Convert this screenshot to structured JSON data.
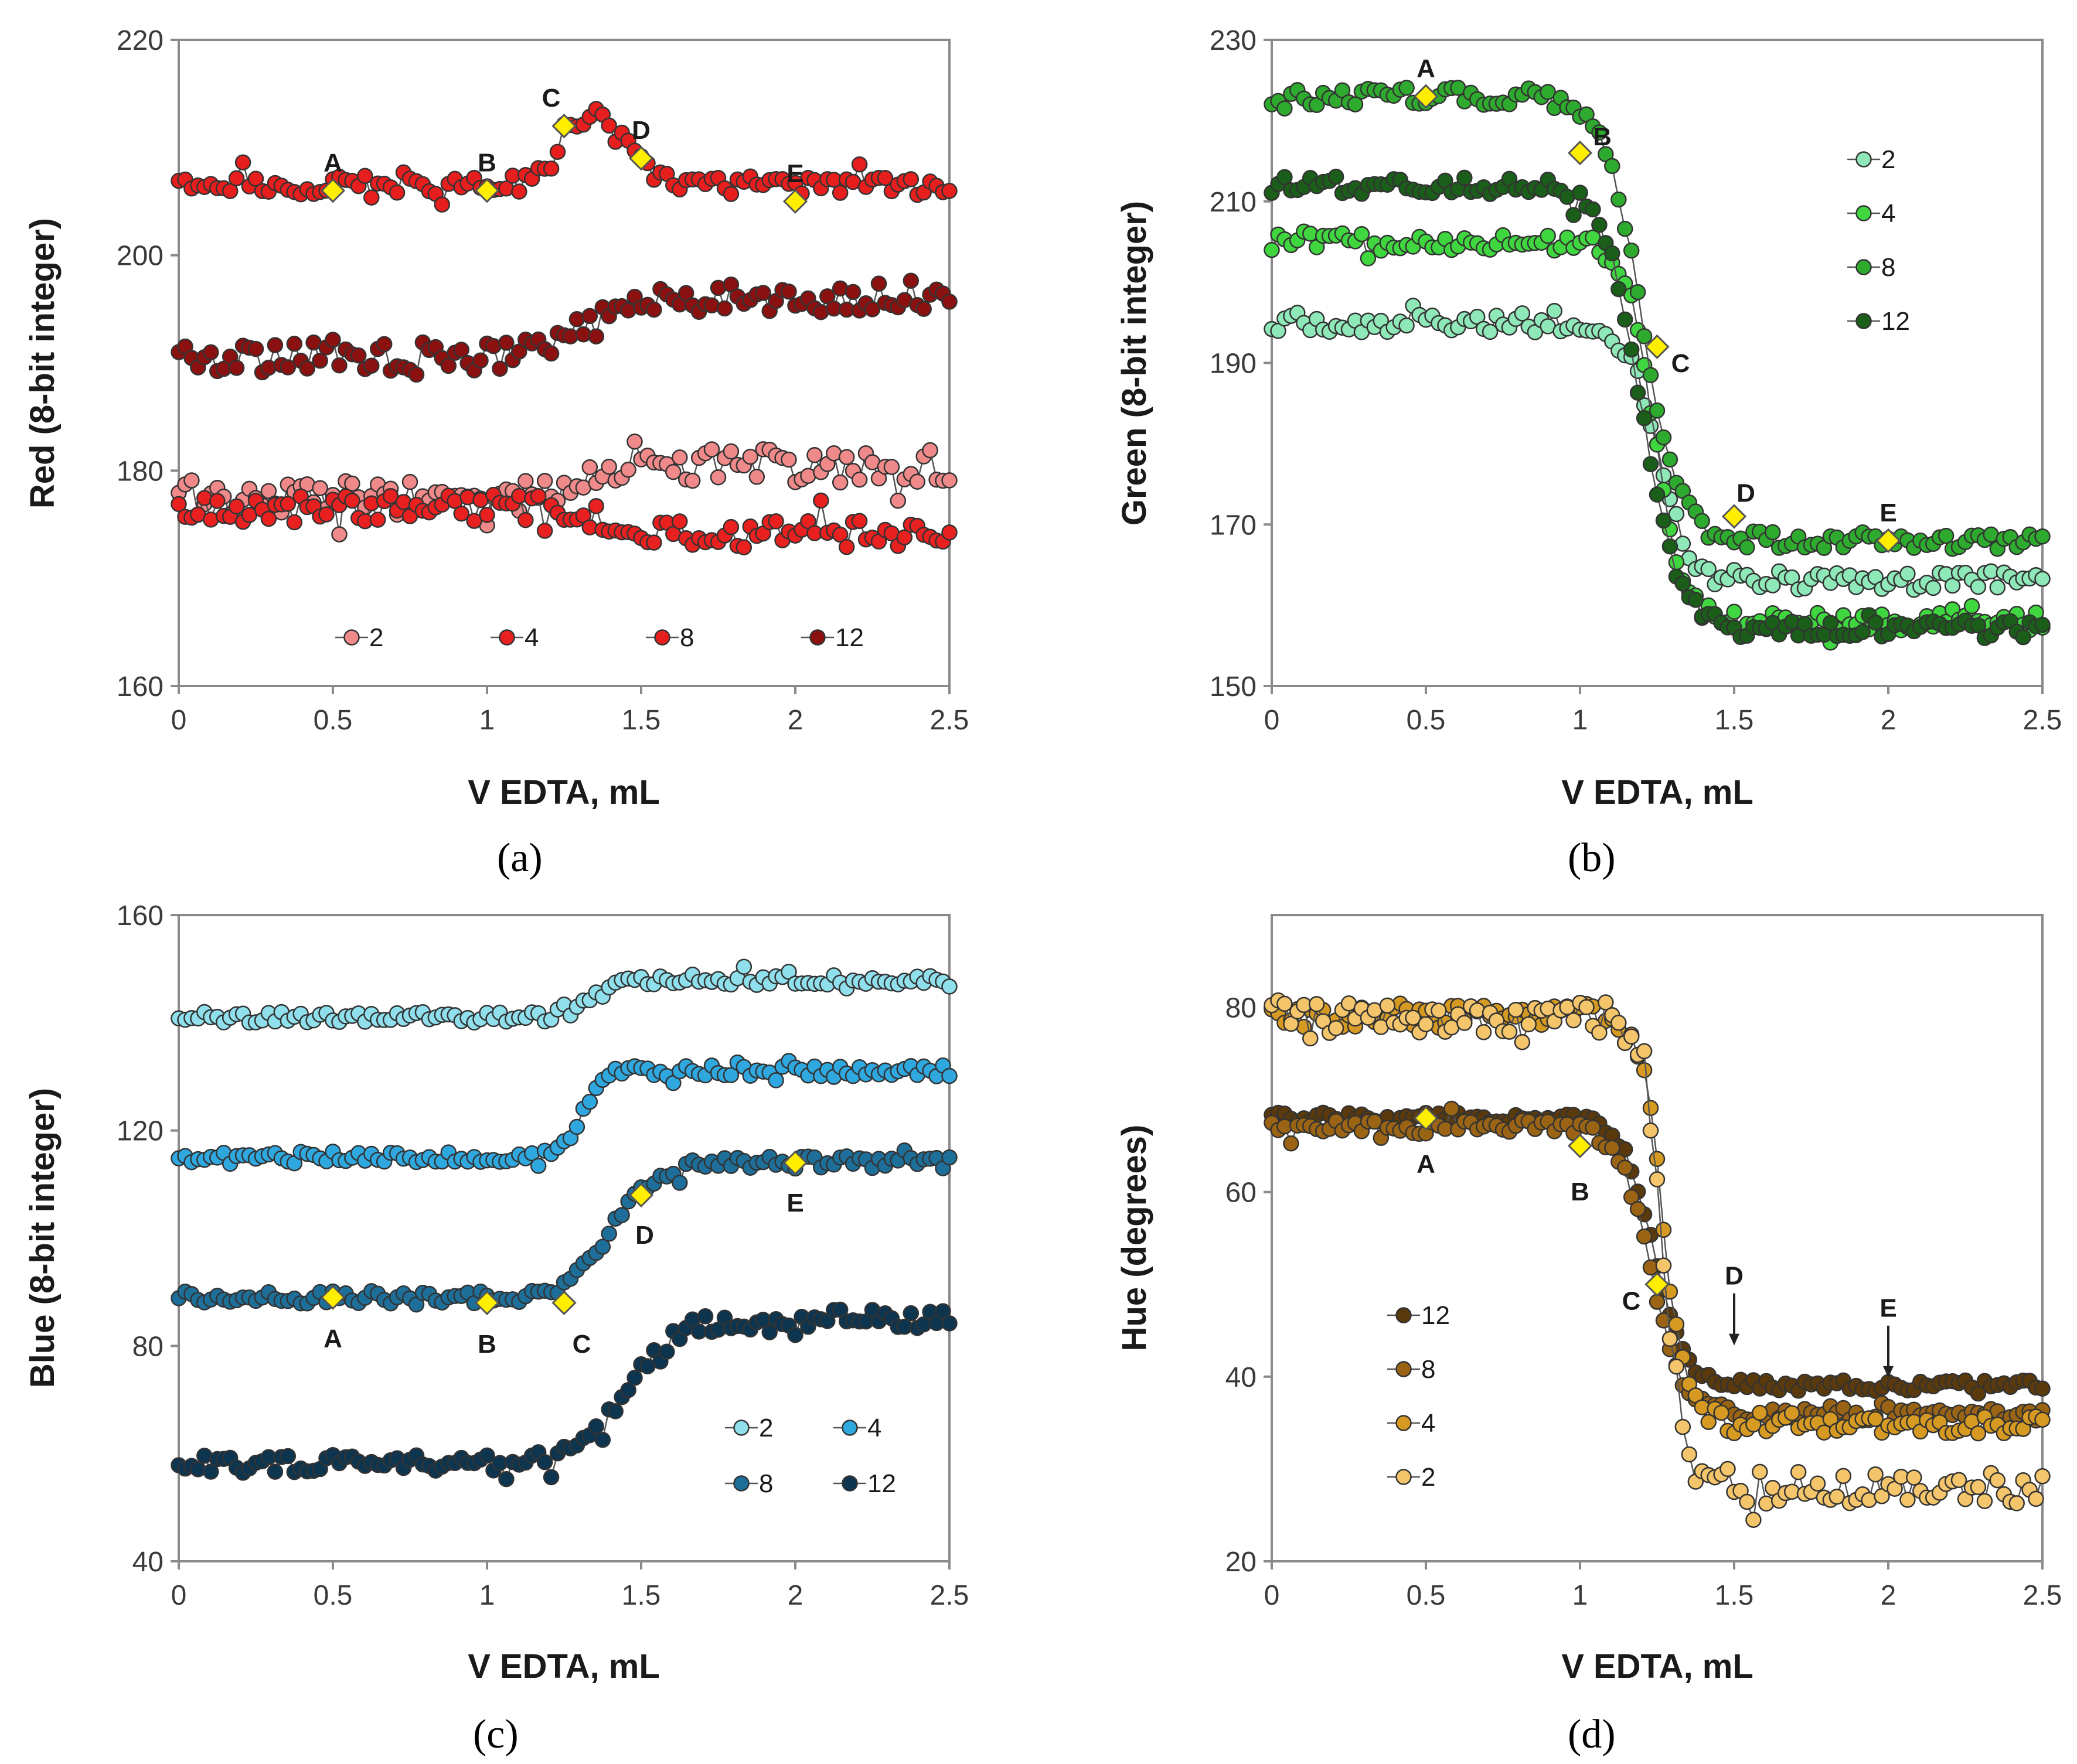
{
  "figure": {
    "captions": [
      "(a)",
      "(b)",
      "(c)",
      "(d)"
    ],
    "marker_color": "#ffee00"
  },
  "chart_data": [
    {
      "id": "a",
      "type": "scatter",
      "title": "",
      "xlabel": "V EDTA, mL",
      "ylabel": "Red (8-bit integer)",
      "xlim": [
        0,
        2.5
      ],
      "ylim": [
        160,
        220
      ],
      "xticks": [
        0,
        0.5,
        1,
        1.5,
        2,
        2.5
      ],
      "xtick_labels": [
        "0",
        "0.5",
        "1",
        "1.5",
        "2",
        "2.5"
      ],
      "yticks": [
        160,
        180,
        200,
        220
      ],
      "ytick_labels": [
        "160",
        "180",
        "200",
        "220"
      ],
      "legend_position": "bottom",
      "series": [
        {
          "name": "2",
          "color": "#f08a8a",
          "shape": "sigmoid",
          "start": 177.5,
          "end": 180.5,
          "x0": 1.32,
          "k": 0.05,
          "amp": 1.6
        },
        {
          "name": "4",
          "color": "#e82020",
          "shape": "sigmoid",
          "start": 176.5,
          "end": 174,
          "x0": 1.4,
          "k": 0.06,
          "amp": 1.3
        },
        {
          "name": "8",
          "color": "#e61e1e",
          "shape": "bump",
          "start": 206.5,
          "end": 206.5,
          "peak": 213,
          "x0": 1.35,
          "k": 0.1,
          "amp": 0.9
        },
        {
          "name": "12",
          "color": "#8b1010",
          "shape": "sigmoid",
          "start": 190.5,
          "end": 196,
          "x0": 1.28,
          "k": 0.06,
          "amp": 1.4
        }
      ],
      "markers": [
        {
          "label": "A",
          "x": 0.5,
          "y": 206
        },
        {
          "label": "B",
          "x": 1,
          "y": 206
        },
        {
          "label": "C",
          "x": 1.25,
          "y": 212
        },
        {
          "label": "D",
          "x": 1.5,
          "y": 209
        },
        {
          "label": "E",
          "x": 2,
          "y": 205
        }
      ]
    },
    {
      "id": "b",
      "type": "scatter",
      "title": "",
      "xlabel": "V EDTA, mL",
      "ylabel": "Green (8-bit integer)",
      "xlim": [
        0,
        2.5
      ],
      "ylim": [
        150,
        230
      ],
      "xticks": [
        0,
        0.5,
        1,
        1.5,
        2,
        2.5
      ],
      "xtick_labels": [
        "0",
        "0.5",
        "1",
        "1.5",
        "2",
        "2.5"
      ],
      "yticks": [
        150,
        170,
        190,
        210,
        230
      ],
      "ytick_labels": [
        "150",
        "170",
        "190",
        "210",
        "230"
      ],
      "legend_position": "right",
      "series": [
        {
          "name": "2",
          "color": "#8fe8b8",
          "shape": "sigmoid",
          "start": 195,
          "end": 163,
          "x0": 1.25,
          "k": 0.05,
          "amp": 1.2
        },
        {
          "name": "4",
          "color": "#3fd63f",
          "shape": "sigmoid",
          "start": 205,
          "end": 158,
          "x0": 1.24,
          "k": 0.045,
          "amp": 1.1
        },
        {
          "name": "8",
          "color": "#2eaa2e",
          "shape": "sigmoid",
          "start": 223,
          "end": 168,
          "x0": 1.2,
          "k": 0.06,
          "amp": 1.1
        },
        {
          "name": "12",
          "color": "#1a5e1a",
          "shape": "sigmoid",
          "start": 212,
          "end": 157,
          "x0": 1.2,
          "k": 0.06,
          "amp": 1.1
        }
      ],
      "markers": [
        {
          "label": "A",
          "x": 0.5,
          "y": 223
        },
        {
          "label": "B",
          "x": 1,
          "y": 216
        },
        {
          "label": "C",
          "x": 1.25,
          "y": 192
        },
        {
          "label": "D",
          "x": 1.5,
          "y": 171
        },
        {
          "label": "E",
          "x": 2,
          "y": 168
        }
      ]
    },
    {
      "id": "c",
      "type": "scatter",
      "title": "",
      "xlabel": "V EDTA, mL",
      "ylabel": "Blue (8-bit integer)",
      "xlim": [
        0,
        2.5
      ],
      "ylim": [
        40,
        160
      ],
      "xticks": [
        0,
        0.5,
        1,
        1.5,
        2,
        2.5
      ],
      "xtick_labels": [
        "0",
        "0.5",
        "1",
        "1.5",
        "2",
        "2.5"
      ],
      "yticks": [
        40,
        80,
        120,
        160
      ],
      "ytick_labels": [
        "40",
        "80",
        "120",
        "160"
      ],
      "legend_position": "bottom-right",
      "series": [
        {
          "name": "2",
          "color": "#8fe0ec",
          "shape": "sigmoid",
          "start": 141,
          "end": 148,
          "x0": 1.35,
          "k": 0.05,
          "amp": 1.0
        },
        {
          "name": "4",
          "color": "#2fa8e0",
          "shape": "sigmoid",
          "start": 115,
          "end": 131,
          "x0": 1.31,
          "k": 0.03,
          "amp": 1.1
        },
        {
          "name": "8",
          "color": "#1d6f9a",
          "shape": "sigmoid",
          "start": 89,
          "end": 114,
          "x0": 1.4,
          "k": 0.07,
          "amp": 1.2
        },
        {
          "name": "12",
          "color": "#0e3550",
          "shape": "sigmoid",
          "start": 58,
          "end": 85,
          "x0": 1.45,
          "k": 0.08,
          "amp": 1.8
        }
      ],
      "markers": [
        {
          "label": "A",
          "x": 0.5,
          "y": 89
        },
        {
          "label": "B",
          "x": 1,
          "y": 88
        },
        {
          "label": "C",
          "x": 1.25,
          "y": 88
        },
        {
          "label": "D",
          "x": 1.5,
          "y": 108
        },
        {
          "label": "E",
          "x": 2,
          "y": 114
        }
      ]
    },
    {
      "id": "d",
      "type": "scatter",
      "title": "",
      "xlabel": "V EDTA, mL",
      "ylabel": "Hue (degrees)",
      "xlim": [
        0,
        2.5
      ],
      "ylim": [
        20,
        90
      ],
      "xticks": [
        0,
        0.5,
        1,
        1.5,
        2,
        2.5
      ],
      "xtick_labels": [
        "0",
        "0.5",
        "1",
        "1.5",
        "2",
        "2.5"
      ],
      "yticks": [
        20,
        40,
        60,
        80
      ],
      "ytick_labels": [
        "20",
        "40",
        "60",
        "80"
      ],
      "legend_position": "bottom-left",
      "series": [
        {
          "name": "12",
          "color": "#5a3a0c",
          "shape": "sigmoid",
          "start": 68,
          "end": 39,
          "x0": 1.24,
          "k": 0.05,
          "amp": 0.6
        },
        {
          "name": "8",
          "color": "#9a6414",
          "shape": "sigmoid",
          "start": 67,
          "end": 36,
          "x0": 1.23,
          "k": 0.05,
          "amp": 0.8
        },
        {
          "name": "4",
          "color": "#d69a22",
          "shape": "sigmoid",
          "start": 79,
          "end": 35,
          "x0": 1.27,
          "k": 0.035,
          "amp": 1.2
        },
        {
          "name": "2",
          "color": "#f4c56a",
          "shape": "sigmoid",
          "start": 79,
          "end": 28,
          "x0": 1.27,
          "k": 0.035,
          "amp": 1.8
        }
      ],
      "markers": [
        {
          "label": "A",
          "x": 0.5,
          "y": 68
        },
        {
          "label": "B",
          "x": 1,
          "y": 65
        },
        {
          "label": "C",
          "x": 1.25,
          "y": 50
        }
      ],
      "arrows": [
        {
          "label": "D",
          "x": 1.5,
          "y": 43
        },
        {
          "label": "E",
          "x": 2,
          "y": 39.5
        }
      ]
    }
  ]
}
